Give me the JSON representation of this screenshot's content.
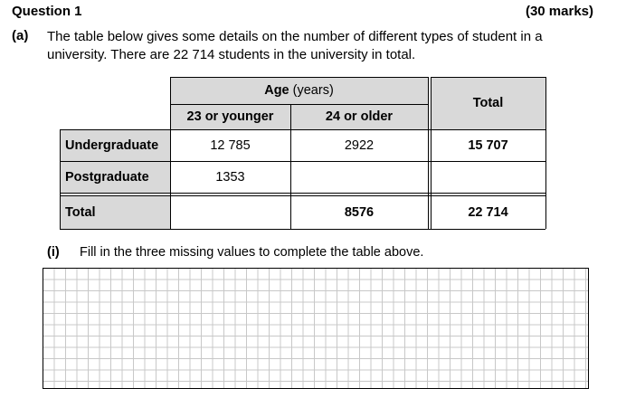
{
  "question": {
    "title": "Question 1",
    "marks": "(30 marks)"
  },
  "part_a": {
    "label": "(a)",
    "text": "The table below gives some details on the number of different types of student in a university.  There are 22 714 students in the university in total."
  },
  "table": {
    "age_header_bold": "Age",
    "age_header_rest": " (years)",
    "col_23_or_younger": "23 or younger",
    "col_24_or_older": "24 or older",
    "col_total": "Total",
    "rows": [
      {
        "label": "Undergraduate",
        "c1": "12 785",
        "c2": "2922",
        "total": "15 707"
      },
      {
        "label": "Postgraduate",
        "c1": "1353",
        "c2": "",
        "total": ""
      },
      {
        "label": "Total",
        "c1": "",
        "c2": "8576",
        "total": "22 714"
      }
    ]
  },
  "part_i": {
    "label": "(i)",
    "text": "Fill in the three missing values to complete the table above."
  }
}
